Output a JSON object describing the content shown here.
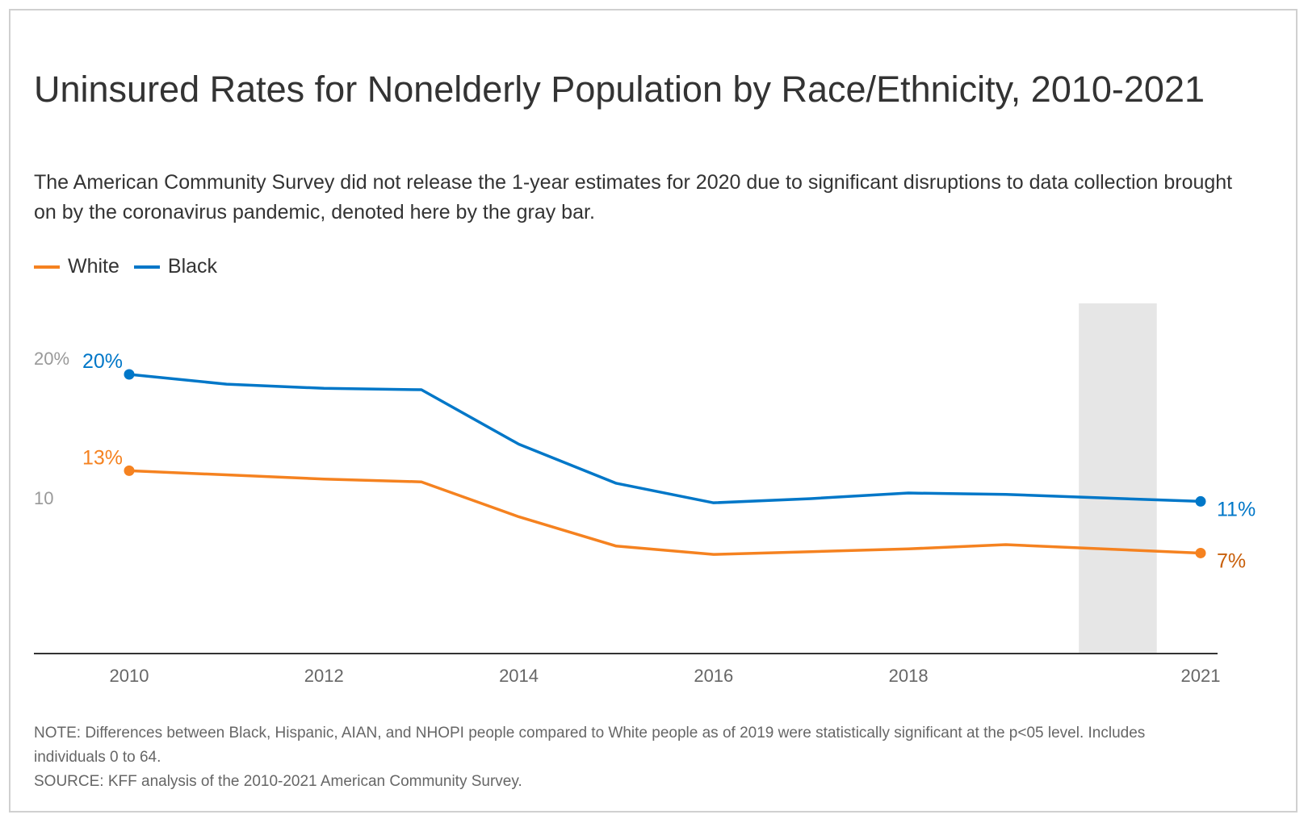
{
  "title": "Uninsured Rates for Nonelderly Population by Race/Ethnicity, 2010-2021",
  "subtitle": "The American Community Survey did not release the 1-year estimates for 2020 due to significant disruptions to data collection brought on by the coronavirus pandemic, denoted here by the gray bar.",
  "note": "NOTE: Differences between Black, Hispanic, AIAN, and NHOPI people compared to White people as of 2019 were statistically significant at the p<05 level. Includes individuals 0 to 64.",
  "source": "SOURCE: KFF analysis of the 2010-2021 American Community Survey.",
  "chart_data": {
    "type": "line",
    "x": [
      2010,
      2011,
      2012,
      2013,
      2014,
      2015,
      2016,
      2017,
      2018,
      2019,
      2021
    ],
    "series": [
      {
        "name": "White",
        "color": "#f58220",
        "label_color": "#c85f0a",
        "values": [
          13.1,
          12.8,
          12.5,
          12.3,
          9.8,
          7.7,
          7.1,
          7.3,
          7.5,
          7.8,
          7.2
        ],
        "start_label": "13%",
        "end_label": "7%"
      },
      {
        "name": "Black",
        "color": "#0077c8",
        "label_color": "#0077c8",
        "values": [
          20.0,
          19.3,
          19.0,
          18.9,
          15.0,
          12.2,
          10.8,
          11.1,
          11.5,
          11.4,
          10.9
        ],
        "start_label": "20%",
        "end_label": "11%"
      }
    ],
    "xticks": [
      "2010",
      "2012",
      "2014",
      "2016",
      "2018",
      "2021"
    ],
    "xtick_values": [
      2010,
      2012,
      2014,
      2016,
      2018,
      2021
    ],
    "yticks": [
      {
        "value": 20,
        "label": "20%"
      },
      {
        "value": 10,
        "label": "10"
      }
    ],
    "ylim": [
      0,
      24
    ],
    "xlim": [
      2009.5,
      2021.1
    ],
    "shaded_region": {
      "from": 2019.75,
      "to": 2020.55,
      "color": "#e6e6e6"
    },
    "grid": false,
    "legend_position": "top-left"
  }
}
